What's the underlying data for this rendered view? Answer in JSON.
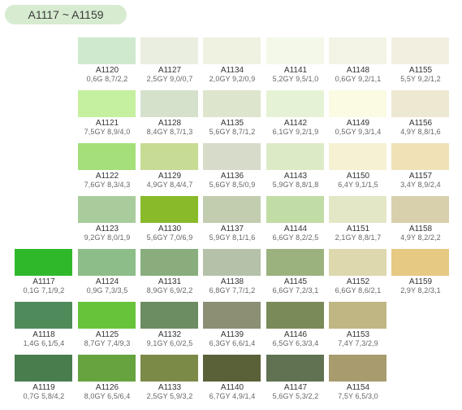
{
  "header": {
    "title": "A1117 ~ A1159"
  },
  "chips": [
    {
      "code": "A1117",
      "munsell": "0,1G 7,1/9,2",
      "col": 0,
      "row": 4,
      "color": "#2fb92a"
    },
    {
      "code": "A1118",
      "munsell": "1,4G 6,1/5,4",
      "col": 0,
      "row": 5,
      "color": "#4f8a5a"
    },
    {
      "code": "A1119",
      "munsell": "0,7G 5,8/4,2",
      "col": 0,
      "row": 6,
      "color": "#4a7d4e"
    },
    {
      "code": "A1120",
      "munsell": "0,6G 8,7/2,2",
      "col": 1,
      "row": 0,
      "color": "#cfe9cf"
    },
    {
      "code": "A1121",
      "munsell": "7,5GY 8,9/4,0",
      "col": 1,
      "row": 1,
      "color": "#c4f0a0"
    },
    {
      "code": "A1122",
      "munsell": "7,6GY 8,3/4,3",
      "col": 1,
      "row": 2,
      "color": "#a5df7a"
    },
    {
      "code": "A1123",
      "munsell": "9,2GY 8,0/1,9",
      "col": 1,
      "row": 3,
      "color": "#a9cc9c"
    },
    {
      "code": "A1124",
      "munsell": "0,9G 7,3/3,5",
      "col": 1,
      "row": 4,
      "color": "#8dbd89"
    },
    {
      "code": "A1125",
      "munsell": "8,7GY 7,4/9,3",
      "col": 1,
      "row": 5,
      "color": "#67c43a"
    },
    {
      "code": "A1126",
      "munsell": "8,0GY 6,5/6,4",
      "col": 1,
      "row": 6,
      "color": "#67a33f"
    },
    {
      "code": "A1127",
      "munsell": "2,5GY 9,0/0,7",
      "col": 2,
      "row": 0,
      "color": "#eaeee0"
    },
    {
      "code": "A1128",
      "munsell": "8,4GY 8,7/1,3",
      "col": 2,
      "row": 1,
      "color": "#d6e1cc"
    },
    {
      "code": "A1129",
      "munsell": "4,9GY 8,4/4,7",
      "col": 2,
      "row": 2,
      "color": "#c8db94"
    },
    {
      "code": "A1130",
      "munsell": "5,6GY 7,0/6,9",
      "col": 2,
      "row": 3,
      "color": "#89ba2a"
    },
    {
      "code": "A1131",
      "munsell": "8,9GY 6,9/2,2",
      "col": 2,
      "row": 4,
      "color": "#89ad7d"
    },
    {
      "code": "A1132",
      "munsell": "9,1GY 6,0/2,5",
      "col": 2,
      "row": 5,
      "color": "#6c8c62"
    },
    {
      "code": "A1133",
      "munsell": "2,5GY 5,9/3,2",
      "col": 2,
      "row": 6,
      "color": "#7b8a47"
    },
    {
      "code": "A1134",
      "munsell": "2,0GY 9,2/0,9",
      "col": 3,
      "row": 0,
      "color": "#eff1e1"
    },
    {
      "code": "A1135",
      "munsell": "5,6GY 8,7/1,2",
      "col": 3,
      "row": 1,
      "color": "#dde5cd"
    },
    {
      "code": "A1136",
      "munsell": "5,6GY 8,5/0,9",
      "col": 3,
      "row": 2,
      "color": "#d6dcc9"
    },
    {
      "code": "A1137",
      "munsell": "5,9GY 8,1/1,6",
      "col": 3,
      "row": 3,
      "color": "#c2cdaf"
    },
    {
      "code": "A1138",
      "munsell": "6,8GY 7,7/1,2",
      "col": 3,
      "row": 4,
      "color": "#b5c1a8"
    },
    {
      "code": "A1139",
      "munsell": "6,3GY 6,6/1,4",
      "col": 3,
      "row": 5,
      "color": "#8c8f74"
    },
    {
      "code": "A1140",
      "munsell": "6,7GY 4,9/1,4",
      "col": 3,
      "row": 6,
      "color": "#5a6139"
    },
    {
      "code": "A1141",
      "munsell": "5,2GY 9,5/1,0",
      "col": 4,
      "row": 0,
      "color": "#f3f8e8"
    },
    {
      "code": "A1142",
      "munsell": "6,1GY 9,2/1,9",
      "col": 4,
      "row": 1,
      "color": "#e6f2d5"
    },
    {
      "code": "A1143",
      "munsell": "5,9GY 8,8/1,8",
      "col": 4,
      "row": 2,
      "color": "#dcebc6"
    },
    {
      "code": "A1144",
      "munsell": "6,6GY 8,2/2,5",
      "col": 4,
      "row": 3,
      "color": "#c1dca5"
    },
    {
      "code": "A1145",
      "munsell": "6,6GY 7,2/3,1",
      "col": 4,
      "row": 4,
      "color": "#9bb27f"
    },
    {
      "code": "A1146",
      "munsell": "6,5GY 6,3/3,4",
      "col": 4,
      "row": 5,
      "color": "#7a8a58"
    },
    {
      "code": "A1147",
      "munsell": "5,6GY 5,3/2,2",
      "col": 4,
      "row": 6,
      "color": "#617253"
    },
    {
      "code": "A1148",
      "munsell": "0,6GY 9,2/1,1",
      "col": 5,
      "row": 0,
      "color": "#f4f4e6"
    },
    {
      "code": "A1149",
      "munsell": "0,5GY 9,3/1,4",
      "col": 5,
      "row": 1,
      "color": "#fbfbe4"
    },
    {
      "code": "A1150",
      "munsell": "6,4Y 9,1/1,5",
      "col": 5,
      "row": 2,
      "color": "#f6f1d3"
    },
    {
      "code": "A1151",
      "munsell": "2,1GY 8,8/1,7",
      "col": 5,
      "row": 3,
      "color": "#e3e7c6"
    },
    {
      "code": "A1152",
      "munsell": "6,6GY 8,6/2,1",
      "col": 5,
      "row": 4,
      "color": "#ddd8ad"
    },
    {
      "code": "A1153",
      "munsell": "7,4Y 7,3/2,9",
      "col": 5,
      "row": 5,
      "color": "#bfb684"
    },
    {
      "code": "A1154",
      "munsell": "7,5Y 6,5/3,0",
      "col": 5,
      "row": 6,
      "color": "#a89b6d"
    },
    {
      "code": "A1155",
      "munsell": "5,5Y 9,2/1,2",
      "col": 6,
      "row": 0,
      "color": "#f3efe0"
    },
    {
      "code": "A1156",
      "munsell": "4,9Y 8,8/1,6",
      "col": 6,
      "row": 1,
      "color": "#ede8d2"
    },
    {
      "code": "A1157",
      "munsell": "3,4Y 8,9/2,4",
      "col": 6,
      "row": 2,
      "color": "#f0e2b6"
    },
    {
      "code": "A1158",
      "munsell": "4,9Y 8,2/2,2",
      "col": 6,
      "row": 3,
      "color": "#d8cfad"
    },
    {
      "code": "A1159",
      "munsell": "2,9Y 8,2/3,1",
      "col": 6,
      "row": 4,
      "color": "#e6c982"
    }
  ]
}
